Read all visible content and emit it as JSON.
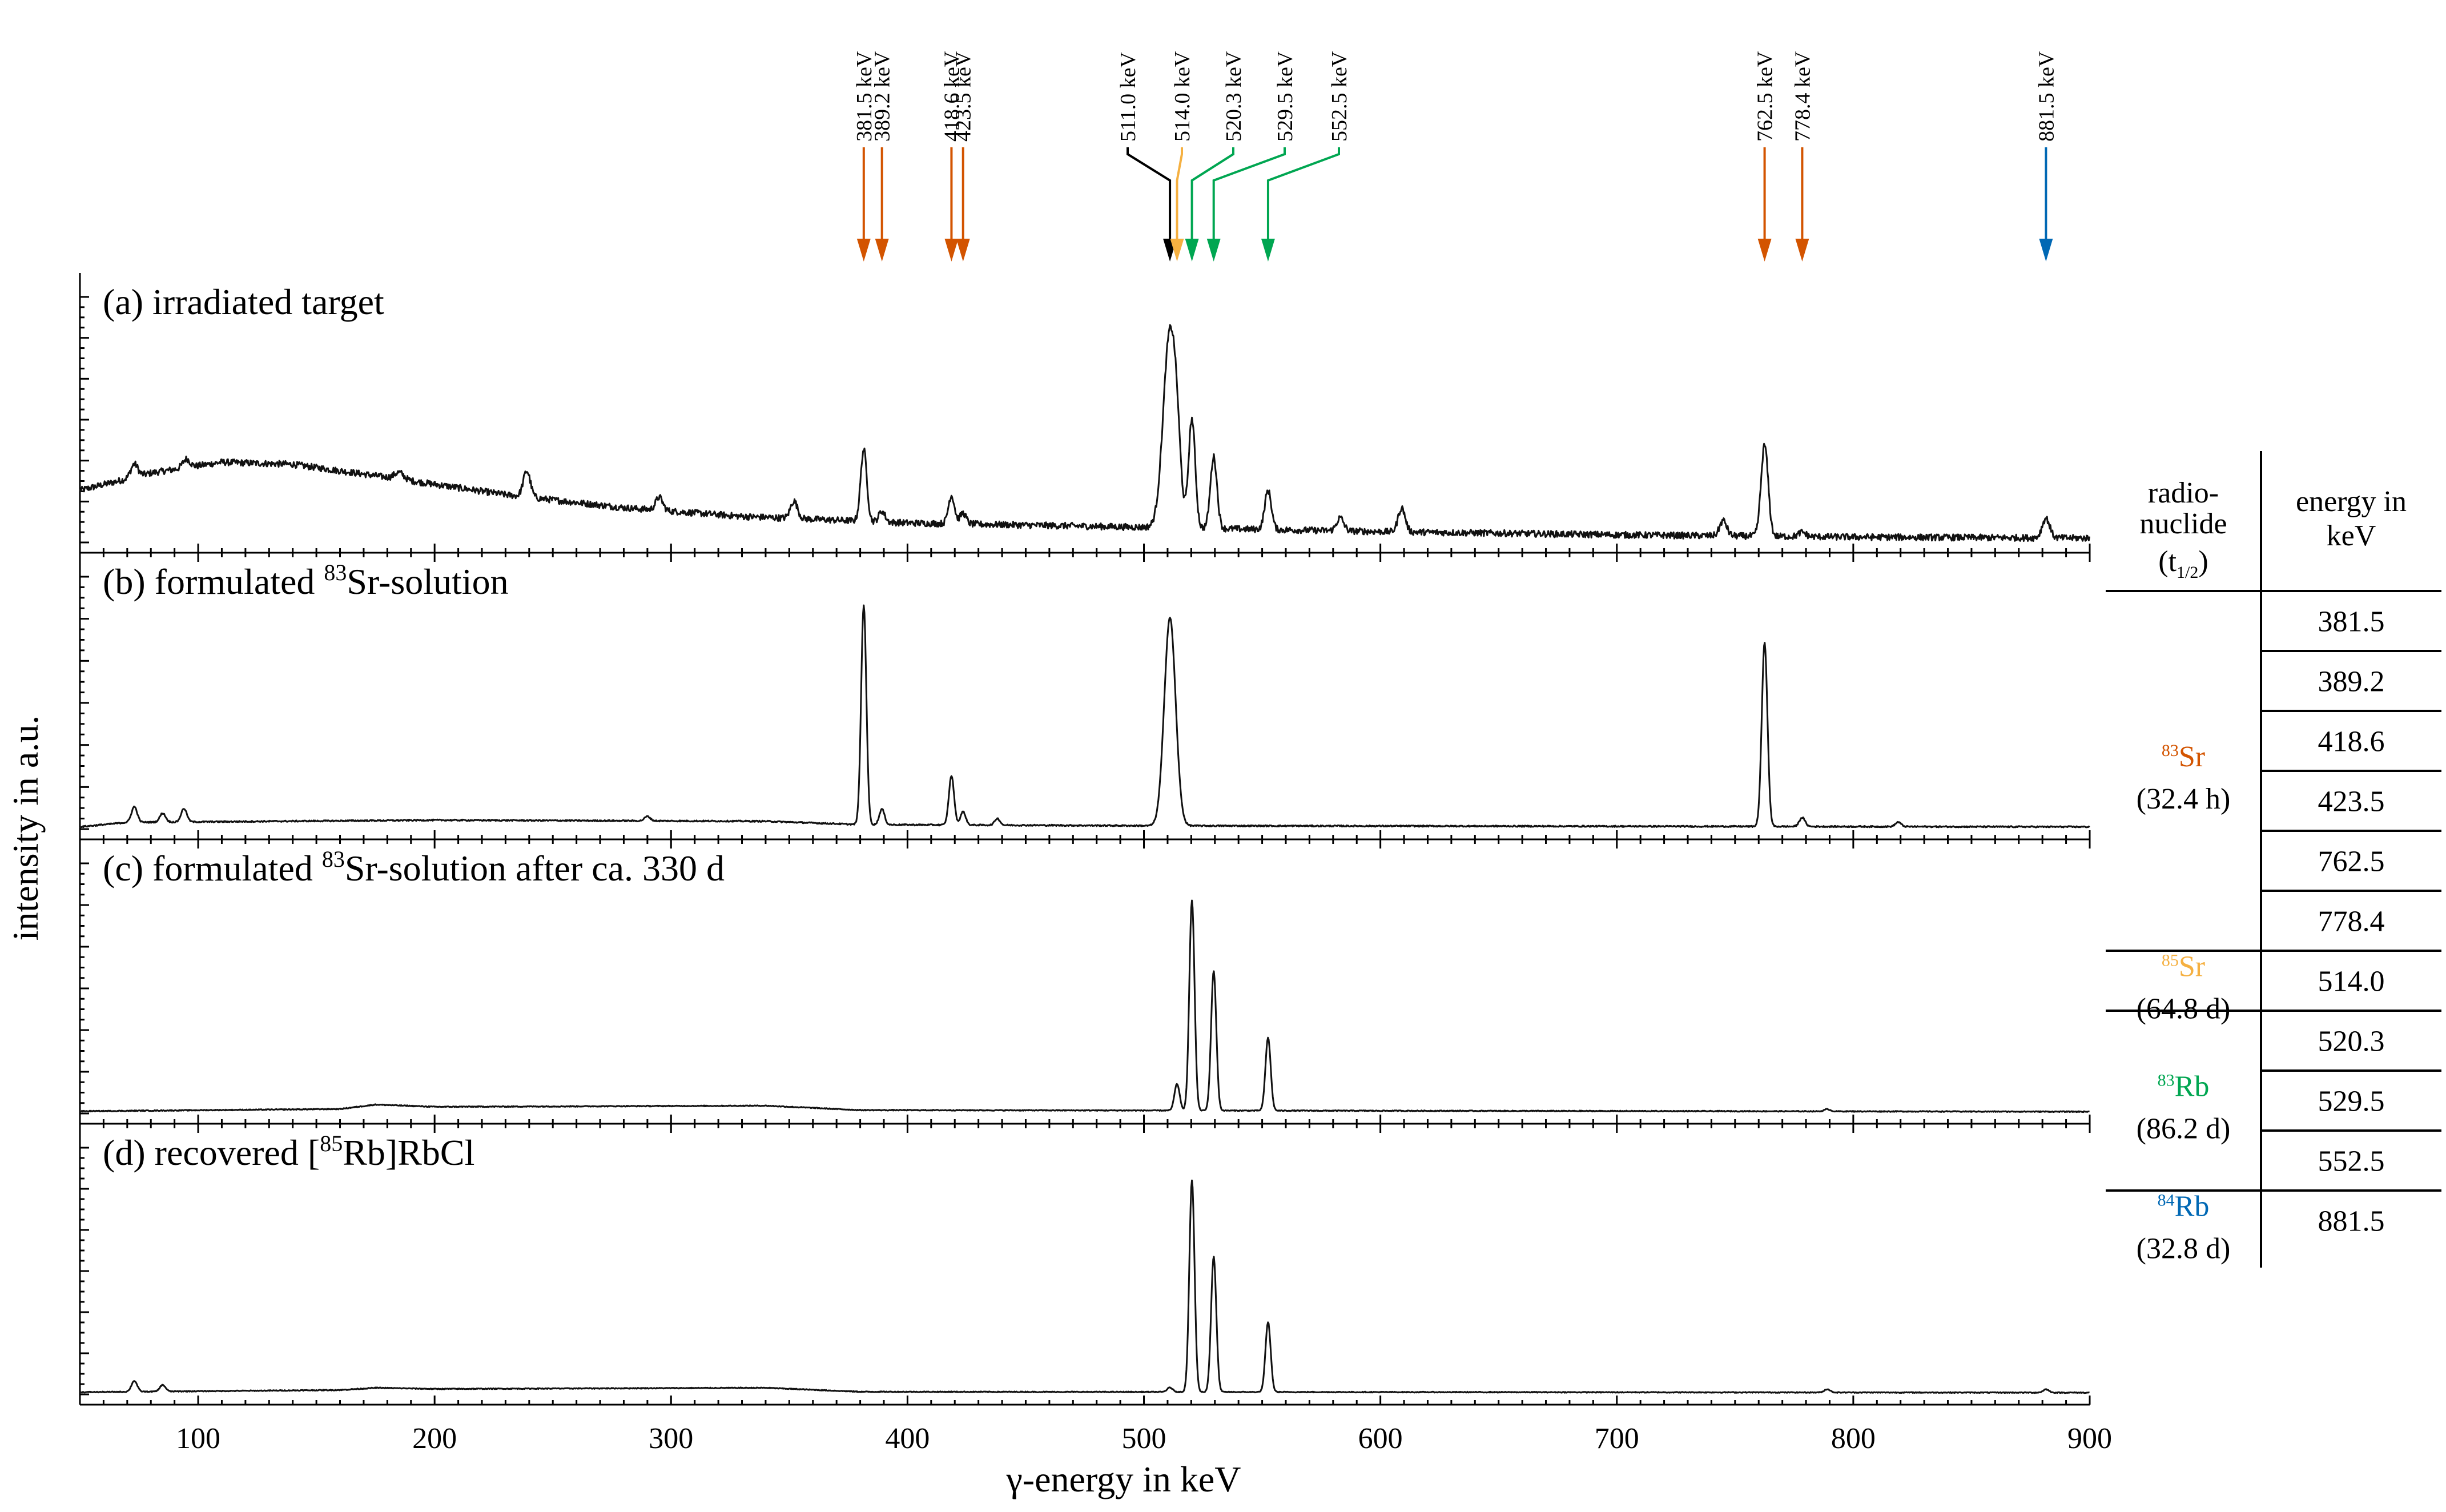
{
  "chart_data": {
    "type": "line",
    "x_range": [
      50,
      900
    ],
    "x_ticks": [
      100,
      200,
      300,
      400,
      500,
      600,
      700,
      800,
      900
    ],
    "xlabel": "γ-energy in keV",
    "ylabel": "intensity in a.u.",
    "grid": false,
    "peak_annotations": [
      {
        "energy": 381.5,
        "label": "381.5 keV",
        "color": "#d35400"
      },
      {
        "energy": 389.2,
        "label": "389.2 keV",
        "color": "#d35400"
      },
      {
        "energy": 418.6,
        "label": "418.6 keV",
        "color": "#d35400"
      },
      {
        "energy": 423.5,
        "label": "423.5 keV",
        "color": "#d35400"
      },
      {
        "energy": 511.0,
        "label": "511.0 keV",
        "color": "#000000"
      },
      {
        "energy": 514.0,
        "label": "514.0 keV",
        "color": "#f5b041"
      },
      {
        "energy": 520.3,
        "label": "520.3 keV",
        "color": "#00a651"
      },
      {
        "energy": 529.5,
        "label": "529.5 keV",
        "color": "#00a651"
      },
      {
        "energy": 552.5,
        "label": "552.5 keV",
        "color": "#00a651"
      },
      {
        "energy": 762.5,
        "label": "762.5 keV",
        "color": "#d35400"
      },
      {
        "energy": 778.4,
        "label": "778.4 keV",
        "color": "#d35400"
      },
      {
        "energy": 881.5,
        "label": "881.5 keV",
        "color": "#0068b4"
      }
    ],
    "panels": [
      {
        "label_prefix": "(a) irradiated target",
        "label_sup": "",
        "label_suffix": "",
        "baseline": {
          "points": [
            [
              50,
              0.24
            ],
            [
              80,
              0.32
            ],
            [
              110,
              0.37
            ],
            [
              140,
              0.36
            ],
            [
              180,
              0.3
            ],
            [
              230,
              0.22
            ],
            [
              280,
              0.16
            ],
            [
              330,
              0.12
            ],
            [
              400,
              0.09
            ],
            [
              500,
              0.07
            ],
            [
              600,
              0.05
            ],
            [
              700,
              0.035
            ],
            [
              800,
              0.025
            ],
            [
              900,
              0.02
            ]
          ],
          "noise": 0.015
        },
        "peaks": [
          [
            73,
            0.06,
            1.5
          ],
          [
            95,
            0.04,
            1.5
          ],
          [
            185,
            0.03,
            2
          ],
          [
            239,
            0.12,
            1.5
          ],
          [
            295,
            0.06,
            1.5
          ],
          [
            352,
            0.08,
            1.5
          ],
          [
            381.5,
            0.33,
            1.3
          ],
          [
            389.2,
            0.05,
            1.3
          ],
          [
            418.6,
            0.13,
            1.3
          ],
          [
            423.5,
            0.05,
            1.3
          ],
          [
            511,
            0.9,
            2.8
          ],
          [
            514,
            0.15,
            1.5
          ],
          [
            520.3,
            0.5,
            1.4
          ],
          [
            529.5,
            0.33,
            1.4
          ],
          [
            552.5,
            0.18,
            1.4
          ],
          [
            583,
            0.06,
            1.5
          ],
          [
            609,
            0.11,
            1.5
          ],
          [
            745,
            0.07,
            1.5
          ],
          [
            762.5,
            0.42,
            1.5
          ],
          [
            778.4,
            0.02,
            1.5
          ],
          [
            881.5,
            0.09,
            1.6
          ]
        ]
      },
      {
        "label_prefix": "(b) formulated ",
        "label_sup": "83",
        "label_suffix": "Sr-solution",
        "baseline": {
          "points": [
            [
              50,
              0.01
            ],
            [
              70,
              0.03
            ],
            [
              200,
              0.04
            ],
            [
              340,
              0.035
            ],
            [
              380,
              0.02
            ],
            [
              500,
              0.015
            ],
            [
              900,
              0.01
            ]
          ],
          "noise": 0.003
        },
        "peaks": [
          [
            73,
            0.07,
            1.2
          ],
          [
            85,
            0.04,
            1.2
          ],
          [
            94,
            0.06,
            1.2
          ],
          [
            290,
            0.02,
            1.2
          ],
          [
            381.5,
            0.98,
            1.1
          ],
          [
            389.2,
            0.07,
            1.1
          ],
          [
            418.6,
            0.22,
            1.1
          ],
          [
            423.5,
            0.06,
            1.1
          ],
          [
            438,
            0.03,
            1.1
          ],
          [
            511,
            0.93,
            2.4
          ],
          [
            762.5,
            0.82,
            1.2
          ],
          [
            778.4,
            0.04,
            1.2
          ],
          [
            819,
            0.02,
            1.2
          ]
        ]
      },
      {
        "label_prefix": "(c) formulated ",
        "label_sup": "83",
        "label_suffix": "Sr-solution after ca. 330 d",
        "baseline": {
          "points": [
            [
              50,
              0.01
            ],
            [
              160,
              0.02
            ],
            [
              175,
              0.04
            ],
            [
              200,
              0.03
            ],
            [
              340,
              0.035
            ],
            [
              380,
              0.015
            ],
            [
              900,
              0.008
            ]
          ],
          "noise": 0.002
        },
        "peaks": [
          [
            514,
            0.12,
            1.1
          ],
          [
            520.3,
            0.95,
            1.1
          ],
          [
            529.5,
            0.63,
            1.1
          ],
          [
            552.5,
            0.33,
            1.1
          ],
          [
            789,
            0.01,
            1.2
          ]
        ]
      },
      {
        "label_prefix": "(d) recovered [",
        "label_sup": "85",
        "label_suffix": "Rb]RbCl",
        "baseline": {
          "points": [
            [
              50,
              0.01
            ],
            [
              160,
              0.02
            ],
            [
              175,
              0.03
            ],
            [
              200,
              0.025
            ],
            [
              340,
              0.03
            ],
            [
              380,
              0.012
            ],
            [
              900,
              0.008
            ]
          ],
          "noise": 0.002
        },
        "peaks": [
          [
            73,
            0.05,
            1.2
          ],
          [
            85,
            0.03,
            1.2
          ],
          [
            511,
            0.02,
            1.2
          ],
          [
            520.3,
            0.97,
            1.1
          ],
          [
            529.5,
            0.62,
            1.1
          ],
          [
            552.5,
            0.32,
            1.1
          ],
          [
            789,
            0.015,
            1.2
          ],
          [
            881.5,
            0.015,
            1.2
          ]
        ]
      }
    ]
  },
  "table": {
    "header_nuclide_lines": [
      "radio-",
      "nuclide"
    ],
    "header_half_life_prefix": "(t",
    "header_half_life_sub": "1/2",
    "header_half_life_suffix": ")",
    "header_energy_lines": [
      "energy in",
      "keV"
    ],
    "groups": [
      {
        "mass": "83",
        "symbol": "Sr",
        "half_life": "(32.4 h)",
        "color": "#d35400",
        "energies": [
          "381.5",
          "389.2",
          "418.6",
          "423.5",
          "762.5",
          "778.4"
        ]
      },
      {
        "mass": "85",
        "symbol": "Sr",
        "half_life": "(64.8 d)",
        "color": "#f5b041",
        "energies": [
          "514.0"
        ]
      },
      {
        "mass": "83",
        "symbol": "Rb",
        "half_life": "(86.2 d)",
        "color": "#00a651",
        "energies": [
          "520.3",
          "529.5",
          "552.5"
        ]
      },
      {
        "mass": "84",
        "symbol": "Rb",
        "half_life": "(32.8 d)",
        "color": "#0068b4",
        "energies": [
          "881.5"
        ]
      }
    ]
  }
}
